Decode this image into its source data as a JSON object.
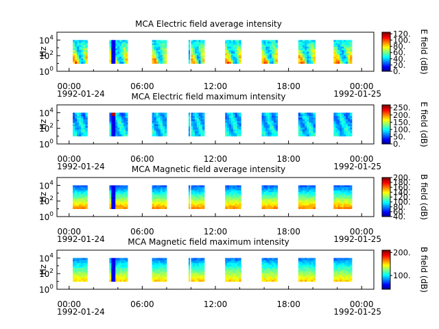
{
  "figure": {
    "date_start": "1992-01-24",
    "date_end": "1992-01-25",
    "x_tick_labels": [
      "00:00",
      "06:00",
      "12:00",
      "18:00",
      "00:00"
    ],
    "y_tick_base": "10",
    "y_tick_exponents": [
      "0",
      "2",
      "4"
    ]
  },
  "chart_data": [
    {
      "type": "heatmap",
      "title": "MCA  Electric field average intensity",
      "ylabel": "Hz",
      "colorbar_label": "E field (dB)",
      "colorbar_range": [
        0,
        125
      ],
      "colorbar_ticks": [
        "0.",
        "20.",
        "40.",
        "60.",
        "80.",
        "100.",
        "120."
      ],
      "y_scale": "log",
      "ylim": [
        "1",
        "10^5"
      ],
      "x_range_hours": [
        -1,
        25
      ],
      "frequency_range_hz": [
        10,
        10000
      ],
      "colormap": "jet",
      "intervals_hours": [
        [
          0.3,
          1.5
        ],
        [
          3.3,
          4.8
        ],
        [
          6.8,
          8.0
        ],
        [
          9.8,
          9.9
        ],
        [
          10.0,
          11.1
        ],
        [
          12.8,
          14.1
        ],
        [
          15.8,
          17.1
        ],
        [
          18.8,
          20.2
        ],
        [
          21.7,
          23.2
        ]
      ]
    },
    {
      "type": "heatmap",
      "title": "MCA  Electric field maximum intensity",
      "ylabel": "Hz",
      "colorbar_label": "E field (dB)",
      "colorbar_range": [
        0,
        270
      ],
      "colorbar_ticks": [
        "0.",
        "50.",
        "100.",
        "150.",
        "200.",
        "250."
      ],
      "y_scale": "log",
      "ylim": [
        "1",
        "10^5"
      ],
      "x_range_hours": [
        -1,
        25
      ],
      "frequency_range_hz": [
        10,
        10000
      ],
      "colormap": "jet",
      "intervals_hours": [
        [
          0.3,
          1.5
        ],
        [
          3.3,
          4.8
        ],
        [
          6.8,
          8.0
        ],
        [
          9.8,
          9.9
        ],
        [
          10.0,
          11.1
        ],
        [
          12.8,
          14.1
        ],
        [
          15.8,
          17.1
        ],
        [
          18.8,
          20.2
        ],
        [
          21.7,
          23.2
        ]
      ]
    },
    {
      "type": "heatmap",
      "title": "MCA  Magnetic field average intensity",
      "ylabel": "Hz",
      "colorbar_label": "B field (dB)",
      "colorbar_range": [
        40,
        200
      ],
      "colorbar_ticks": [
        "40.",
        "60.",
        "80.",
        "100.",
        "120.",
        "140.",
        "160.",
        "180.",
        "200."
      ],
      "y_scale": "log",
      "ylim": [
        "1",
        "10^5"
      ],
      "x_range_hours": [
        -1,
        25
      ],
      "frequency_range_hz": [
        10,
        10000
      ],
      "colormap": "jet",
      "intervals_hours": [
        [
          0.3,
          1.5
        ],
        [
          3.3,
          4.8
        ],
        [
          6.8,
          8.0
        ],
        [
          9.8,
          9.9
        ],
        [
          10.0,
          11.1
        ],
        [
          12.8,
          14.1
        ],
        [
          15.8,
          17.1
        ],
        [
          18.8,
          20.2
        ],
        [
          21.7,
          23.2
        ]
      ]
    },
    {
      "type": "heatmap",
      "title": "MCA  Magnetic field maximum intensity",
      "ylabel": "Hz",
      "colorbar_label": "B field (dB)",
      "colorbar_range": [
        40,
        210
      ],
      "colorbar_ticks": [
        "100.",
        "200."
      ],
      "y_scale": "log",
      "ylim": [
        "1",
        "10^5"
      ],
      "x_range_hours": [
        -1,
        25
      ],
      "frequency_range_hz": [
        10,
        10000
      ],
      "colormap": "jet",
      "intervals_hours": [
        [
          0.3,
          1.5
        ],
        [
          3.3,
          4.8
        ],
        [
          6.8,
          8.0
        ],
        [
          9.8,
          9.9
        ],
        [
          10.0,
          11.1
        ],
        [
          12.8,
          14.1
        ],
        [
          15.8,
          17.1
        ],
        [
          18.8,
          20.2
        ],
        [
          21.7,
          23.2
        ]
      ]
    }
  ]
}
